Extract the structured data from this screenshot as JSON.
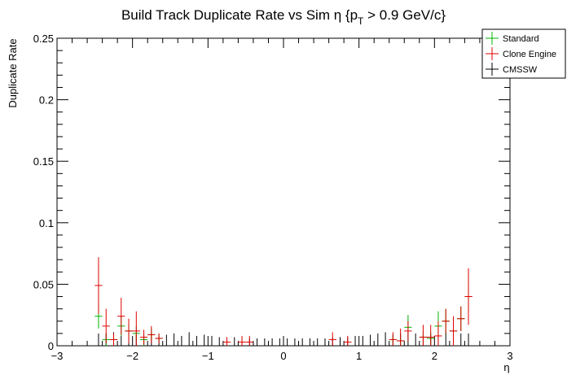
{
  "chart_data": {
    "type": "scatter",
    "title_main": "Build Track Duplicate Rate vs Sim η {p",
    "title_sub": "T",
    "title_tail": " > 0.9 GeV/c}",
    "xlabel": "η",
    "ylabel": "Duplicate Rate",
    "xlim": [
      -3,
      3
    ],
    "ylim": [
      0,
      0.25
    ],
    "x_ticks": [
      -3,
      -2,
      -1,
      0,
      1,
      2,
      3
    ],
    "x_tick_labels": [
      "−3",
      "−2",
      "−1",
      "0",
      "1",
      "2",
      "3"
    ],
    "y_ticks": [
      0,
      0.05,
      0.1,
      0.15,
      0.2,
      0.25
    ],
    "y_tick_labels": [
      "0",
      "0.05",
      "0.1",
      "0.15",
      "0.2",
      "0.25"
    ],
    "bin_width": 0.1,
    "legend_position": "top-right",
    "series": [
      {
        "name": "Standard",
        "color": "#00b400",
        "points": [
          {
            "x": -2.45,
            "y": 0.024,
            "err": 0.01
          },
          {
            "x": -2.35,
            "y": 0.005,
            "err": 0.005
          },
          {
            "x": -2.25,
            "y": 0.005,
            "err": 0.005
          },
          {
            "x": -2.15,
            "y": 0.016,
            "err": 0.008
          },
          {
            "x": -2.05,
            "y": 0.012,
            "err": 0.006
          },
          {
            "x": -1.95,
            "y": 0.01,
            "err": 0.006
          },
          {
            "x": -1.85,
            "y": 0.005,
            "err": 0.005
          },
          {
            "x": -1.75,
            "y": 0.009,
            "err": 0.005
          },
          {
            "x": -1.65,
            "y": 0.006,
            "err": 0.004
          },
          {
            "x": 1.45,
            "y": 0.005,
            "err": 0.004
          },
          {
            "x": 1.55,
            "y": 0.004,
            "err": 0.004
          },
          {
            "x": 1.65,
            "y": 0.015,
            "err": 0.01
          },
          {
            "x": 1.85,
            "y": 0.007,
            "err": 0.005
          },
          {
            "x": 1.95,
            "y": 0.006,
            "err": 0.005
          },
          {
            "x": 2.05,
            "y": 0.016,
            "err": 0.012
          },
          {
            "x": 2.15,
            "y": 0.02,
            "err": 0.01
          },
          {
            "x": 2.25,
            "y": 0.012,
            "err": 0.008
          },
          {
            "x": 2.35,
            "y": 0.022,
            "err": 0.01
          },
          {
            "x": 2.45,
            "y": 0.04,
            "err": 0.012
          }
        ]
      },
      {
        "name": "Clone Engine",
        "color": "#e00000",
        "points": [
          {
            "x": -2.45,
            "y": 0.049,
            "err": 0.023
          },
          {
            "x": -2.35,
            "y": 0.016,
            "err": 0.014
          },
          {
            "x": -2.25,
            "y": 0.005,
            "err": 0.005
          },
          {
            "x": -2.15,
            "y": 0.024,
            "err": 0.015
          },
          {
            "x": -2.05,
            "y": 0.012,
            "err": 0.01
          },
          {
            "x": -1.95,
            "y": 0.012,
            "err": 0.016
          },
          {
            "x": -1.85,
            "y": 0.007,
            "err": 0.006
          },
          {
            "x": -1.75,
            "y": 0.009,
            "err": 0.007
          },
          {
            "x": -1.65,
            "y": 0.006,
            "err": 0.004
          },
          {
            "x": -0.75,
            "y": 0.003,
            "err": 0.004
          },
          {
            "x": -0.55,
            "y": 0.003,
            "err": 0.005
          },
          {
            "x": -0.45,
            "y": 0.003,
            "err": 0.005
          },
          {
            "x": 0.65,
            "y": 0.005,
            "err": 0.006
          },
          {
            "x": 0.85,
            "y": 0.003,
            "err": 0.005
          },
          {
            "x": 1.45,
            "y": 0.005,
            "err": 0.006
          },
          {
            "x": 1.55,
            "y": 0.004,
            "err": 0.01
          },
          {
            "x": 1.65,
            "y": 0.012,
            "err": 0.008
          },
          {
            "x": 1.85,
            "y": 0.007,
            "err": 0.01
          },
          {
            "x": 1.95,
            "y": 0.007,
            "err": 0.01
          },
          {
            "x": 2.05,
            "y": 0.008,
            "err": 0.012
          },
          {
            "x": 2.15,
            "y": 0.02,
            "err": 0.01
          },
          {
            "x": 2.25,
            "y": 0.012,
            "err": 0.012
          },
          {
            "x": 2.35,
            "y": 0.022,
            "err": 0.01
          },
          {
            "x": 2.45,
            "y": 0.04,
            "err": 0.023
          }
        ]
      },
      {
        "name": "CMSSW",
        "color": "#000000",
        "points": [
          {
            "x": -2.45,
            "y": 0,
            "err": 0.01
          },
          {
            "x": -2.35,
            "y": 0,
            "err": 0.01
          },
          {
            "x": -2.25,
            "y": 0,
            "err": 0.011
          },
          {
            "x": -2.15,
            "y": 0,
            "err": 0.008
          },
          {
            "x": -2.05,
            "y": 0,
            "err": 0.01
          },
          {
            "x": -1.95,
            "y": 0,
            "err": 0.009
          },
          {
            "x": -1.85,
            "y": 0,
            "err": 0.008
          },
          {
            "x": -1.75,
            "y": 0,
            "err": 0.01
          },
          {
            "x": -1.65,
            "y": 0,
            "err": 0.008
          },
          {
            "x": -1.55,
            "y": 0,
            "err": 0.009
          },
          {
            "x": -1.45,
            "y": 0,
            "err": 0.01
          },
          {
            "x": -1.35,
            "y": 0,
            "err": 0.008
          },
          {
            "x": -1.25,
            "y": 0,
            "err": 0.011
          },
          {
            "x": -1.15,
            "y": 0,
            "err": 0.008
          },
          {
            "x": -1.05,
            "y": 0,
            "err": 0.009
          },
          {
            "x": -0.95,
            "y": 0,
            "err": 0.008
          },
          {
            "x": -0.85,
            "y": 0,
            "err": 0.007
          },
          {
            "x": -0.75,
            "y": 0,
            "err": 0.007
          },
          {
            "x": -0.65,
            "y": 0,
            "err": 0.007
          },
          {
            "x": -0.55,
            "y": 0,
            "err": 0.006
          },
          {
            "x": -0.45,
            "y": 0,
            "err": 0.006
          },
          {
            "x": -0.35,
            "y": 0,
            "err": 0.006
          },
          {
            "x": -0.25,
            "y": 0,
            "err": 0.006
          },
          {
            "x": -0.15,
            "y": 0,
            "err": 0.006
          },
          {
            "x": -0.05,
            "y": 0,
            "err": 0.006
          },
          {
            "x": 0.05,
            "y": 0,
            "err": 0.006
          },
          {
            "x": 0.15,
            "y": 0,
            "err": 0.006
          },
          {
            "x": 0.25,
            "y": 0,
            "err": 0.006
          },
          {
            "x": 0.35,
            "y": 0,
            "err": 0.006
          },
          {
            "x": 0.45,
            "y": 0,
            "err": 0.006
          },
          {
            "x": 0.55,
            "y": 0,
            "err": 0.006
          },
          {
            "x": 0.65,
            "y": 0,
            "err": 0.007
          },
          {
            "x": 0.75,
            "y": 0,
            "err": 0.007
          },
          {
            "x": 0.85,
            "y": 0,
            "err": 0.007
          },
          {
            "x": 0.95,
            "y": 0,
            "err": 0.008
          },
          {
            "x": 1.05,
            "y": 0,
            "err": 0.008
          },
          {
            "x": 1.15,
            "y": 0,
            "err": 0.009
          },
          {
            "x": 1.25,
            "y": 0,
            "err": 0.01
          },
          {
            "x": 1.35,
            "y": 0,
            "err": 0.011
          },
          {
            "x": 1.45,
            "y": 0,
            "err": 0.009
          },
          {
            "x": 1.55,
            "y": 0,
            "err": 0.01
          },
          {
            "x": 1.65,
            "y": 0,
            "err": 0.011
          },
          {
            "x": 1.75,
            "y": 0,
            "err": 0.01
          },
          {
            "x": 1.85,
            "y": 0,
            "err": 0.009
          },
          {
            "x": 1.95,
            "y": 0,
            "err": 0.009
          },
          {
            "x": 2.05,
            "y": 0,
            "err": 0.01
          },
          {
            "x": 2.15,
            "y": 0,
            "err": 0.011
          },
          {
            "x": 2.25,
            "y": 0,
            "err": 0.011
          },
          {
            "x": 2.35,
            "y": 0,
            "err": 0.01
          },
          {
            "x": 2.45,
            "y": 0,
            "err": 0.01
          }
        ]
      }
    ]
  }
}
